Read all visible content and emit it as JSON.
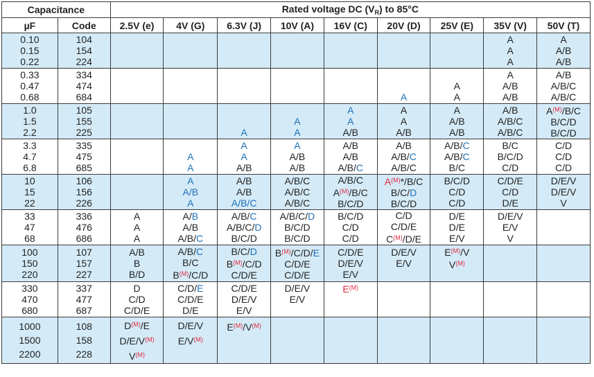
{
  "header": {
    "capacitance": "Capacitance",
    "rated_pre": "Rated voltage DC (V",
    "rated_sub": "R",
    "rated_post": ") to 85°C",
    "uf": "µF",
    "code": "Code",
    "voltages": [
      "2.5V (e)",
      "4V (G)",
      "6.3V (J)",
      "10V (A)",
      "16V (C)",
      "20V (D)",
      "25V (E)",
      "35V (V)",
      "50V (T)"
    ]
  },
  "colors": {
    "blue_row": "#d4ebf7",
    "blue_text": "#1f6fb5",
    "red_text": "#e0283c"
  },
  "rows": [
    {
      "band": "blue",
      "uf": [
        "0.10",
        "0.15",
        "0.22"
      ],
      "code": [
        "104",
        "154",
        "224"
      ],
      "cells": [
        [],
        [],
        [],
        [],
        [],
        [],
        [],
        [
          [
            [
              "A",
              "k"
            ]
          ],
          [
            [
              "A",
              "k"
            ]
          ],
          [
            [
              "A",
              "k"
            ]
          ]
        ],
        [
          [
            [
              "A",
              "k"
            ]
          ],
          [
            [
              "A/B",
              "k"
            ]
          ],
          [
            [
              "A/B",
              "k"
            ]
          ]
        ]
      ]
    },
    {
      "band": "white",
      "uf": [
        "0.33",
        "0.47",
        "0.68"
      ],
      "code": [
        "334",
        "474",
        "684"
      ],
      "cells": [
        [],
        [],
        [],
        [],
        [],
        [
          [],
          [],
          [
            [
              "A",
              "b"
            ]
          ]
        ],
        [
          [],
          [
            [
              "A",
              "k"
            ]
          ],
          [
            [
              "A",
              "k"
            ]
          ]
        ],
        [
          [
            [
              "A",
              "k"
            ]
          ],
          [
            [
              "A/B",
              "k"
            ]
          ],
          [
            [
              "A/B",
              "k"
            ]
          ]
        ],
        [
          [
            [
              "A/B",
              "k"
            ]
          ],
          [
            [
              "A/B/C",
              "k"
            ]
          ],
          [
            [
              "A/B/C",
              "k"
            ]
          ]
        ]
      ]
    },
    {
      "band": "blue",
      "uf": [
        "1.0",
        "1.5",
        "2.2"
      ],
      "code": [
        "105",
        "155",
        "225"
      ],
      "cells": [
        [],
        [],
        [
          [],
          [],
          [
            [
              "A",
              "b"
            ]
          ]
        ],
        [
          [],
          [
            [
              "A",
              "b"
            ]
          ],
          [
            [
              "A",
              "b"
            ]
          ]
        ],
        [
          [
            [
              "A",
              "b"
            ]
          ],
          [
            [
              "A",
              "b"
            ]
          ],
          [
            [
              "A/B",
              "k"
            ]
          ]
        ],
        [
          [
            [
              "A",
              "k"
            ]
          ],
          [
            [
              "A",
              "k"
            ]
          ],
          [
            [
              "A/B",
              "k"
            ]
          ]
        ],
        [
          [
            [
              "A",
              "k"
            ]
          ],
          [
            [
              "A/B",
              "k"
            ]
          ],
          [
            [
              "A/B",
              "k"
            ]
          ]
        ],
        [
          [
            [
              "A/B",
              "k"
            ]
          ],
          [
            [
              "A/B/C",
              "k"
            ]
          ],
          [
            [
              "A/B/C",
              "k"
            ]
          ]
        ],
        [
          [
            [
              "A",
              "k"
            ],
            [
              "(M)",
              "s"
            ],
            [
              "/B/C",
              "k"
            ]
          ],
          [
            [
              "B/C/D",
              "k"
            ]
          ],
          [
            [
              "B/C/D",
              "k"
            ]
          ]
        ]
      ]
    },
    {
      "band": "white",
      "uf": [
        "3.3",
        "4.7",
        "6.8"
      ],
      "code": [
        "335",
        "475",
        "685"
      ],
      "cells": [
        [],
        [
          [],
          [
            [
              "A",
              "b"
            ]
          ],
          [
            [
              "A",
              "b"
            ]
          ]
        ],
        [
          [
            [
              "A",
              "b"
            ]
          ],
          [
            [
              "A",
              "b"
            ]
          ],
          [
            [
              "A/B",
              "k"
            ]
          ]
        ],
        [
          [
            [
              "A",
              "b"
            ]
          ],
          [
            [
              "A/B",
              "k"
            ]
          ],
          [
            [
              "A/B",
              "k"
            ]
          ]
        ],
        [
          [
            [
              "A/B",
              "k"
            ]
          ],
          [
            [
              "A/B",
              "k"
            ]
          ],
          [
            [
              "A/B/",
              "k"
            ],
            [
              "C",
              "b"
            ]
          ]
        ],
        [
          [
            [
              "A/B",
              "k"
            ]
          ],
          [
            [
              "A/B/",
              "k"
            ],
            [
              "C",
              "b"
            ]
          ],
          [
            [
              "A/B/C",
              "k"
            ]
          ]
        ],
        [
          [
            [
              "A/B/",
              "k"
            ],
            [
              "C",
              "b"
            ]
          ],
          [
            [
              "A/B/",
              "k"
            ],
            [
              "C",
              "b"
            ]
          ],
          [
            [
              "B/C",
              "k"
            ]
          ]
        ],
        [
          [
            [
              "B/C",
              "k"
            ]
          ],
          [
            [
              "B/C/D",
              "k"
            ]
          ],
          [
            [
              "C/D",
              "k"
            ]
          ]
        ],
        [
          [
            [
              "C/D",
              "k"
            ]
          ],
          [
            [
              "C/D",
              "k"
            ]
          ],
          [
            [
              "C/D",
              "k"
            ]
          ]
        ]
      ]
    },
    {
      "band": "blue",
      "uf": [
        "10",
        "15",
        "22"
      ],
      "code": [
        "106",
        "156",
        "226"
      ],
      "cells": [
        [],
        [
          [
            [
              "A",
              "b"
            ]
          ],
          [
            [
              "A/B",
              "b"
            ]
          ],
          [
            [
              "A",
              "b"
            ]
          ]
        ],
        [
          [
            [
              "A/B",
              "k"
            ]
          ],
          [
            [
              "A/B",
              "k"
            ]
          ],
          [
            [
              "A/",
              "b"
            ],
            [
              "B/C",
              "b"
            ]
          ]
        ],
        [
          [
            [
              "A/B/C",
              "k"
            ]
          ],
          [
            [
              "A/B/C",
              "k"
            ]
          ],
          [
            [
              "A/B/C",
              "k"
            ]
          ]
        ],
        [
          [
            [
              "A/B/C",
              "k"
            ]
          ],
          [
            [
              "A",
              "k"
            ],
            [
              "(M)",
              "s"
            ],
            [
              "/B/C",
              "k"
            ]
          ],
          [
            [
              "B/C/D",
              "k"
            ]
          ]
        ],
        [
          [
            [
              "A",
              "r"
            ],
            [
              "(M)",
              "s"
            ],
            [
              "*/B/C",
              "k"
            ]
          ],
          [
            [
              "B/C/",
              "k"
            ],
            [
              "D",
              "b"
            ]
          ],
          [
            [
              "B/C/D",
              "k"
            ]
          ]
        ],
        [
          [
            [
              "B/C/D",
              "k"
            ]
          ],
          [
            [
              "C/D",
              "k"
            ]
          ],
          [
            [
              "C/D",
              "k"
            ]
          ]
        ],
        [
          [
            [
              "C/D/E",
              "k"
            ]
          ],
          [
            [
              "C/D",
              "k"
            ]
          ],
          [
            [
              "D/E",
              "k"
            ]
          ]
        ],
        [
          [
            [
              "D/E/V",
              "k"
            ]
          ],
          [
            [
              "D/E/V",
              "k"
            ]
          ],
          [
            [
              "V",
              "k"
            ]
          ]
        ]
      ]
    },
    {
      "band": "white",
      "uf": [
        "33",
        "47",
        "68"
      ],
      "code": [
        "336",
        "476",
        "686"
      ],
      "cells": [
        [
          [
            [
              "A",
              "k"
            ]
          ],
          [
            [
              "A",
              "k"
            ]
          ],
          [
            [
              "A",
              "k"
            ]
          ]
        ],
        [
          [
            [
              "A/",
              "k"
            ],
            [
              "B",
              "b"
            ]
          ],
          [
            [
              "A/B",
              "k"
            ]
          ],
          [
            [
              "A/B/",
              "k"
            ],
            [
              "C",
              "b"
            ]
          ]
        ],
        [
          [
            [
              "A/B/",
              "k"
            ],
            [
              "C",
              "b"
            ]
          ],
          [
            [
              "A/B/C/",
              "k"
            ],
            [
              "D",
              "b"
            ]
          ],
          [
            [
              "B/C/D",
              "k"
            ]
          ]
        ],
        [
          [
            [
              "A/B/C/",
              "k"
            ],
            [
              "D",
              "b"
            ]
          ],
          [
            [
              "B/C/D",
              "k"
            ]
          ],
          [
            [
              "B/C/D",
              "k"
            ]
          ]
        ],
        [
          [
            [
              "B/C/D",
              "k"
            ]
          ],
          [
            [
              "C/D",
              "k"
            ]
          ],
          [
            [
              "C/D",
              "k"
            ]
          ]
        ],
        [
          [
            [
              "C/D",
              "k"
            ]
          ],
          [
            [
              "C/D/E",
              "k"
            ]
          ],
          [
            [
              "C",
              "k"
            ],
            [
              "(M)",
              "s"
            ],
            [
              "/D/E",
              "k"
            ]
          ]
        ],
        [
          [
            [
              "D/E",
              "k"
            ]
          ],
          [
            [
              "D/E",
              "k"
            ]
          ],
          [
            [
              "E/V",
              "k"
            ]
          ]
        ],
        [
          [
            [
              "D/E/V",
              "k"
            ]
          ],
          [
            [
              "E/V",
              "k"
            ]
          ],
          [
            [
              "V",
              "k"
            ]
          ]
        ],
        []
      ]
    },
    {
      "band": "blue",
      "uf": [
        "100",
        "150",
        "220"
      ],
      "code": [
        "107",
        "157",
        "227"
      ],
      "cells": [
        [
          [
            [
              "A/B",
              "k"
            ]
          ],
          [
            [
              "B",
              "k"
            ]
          ],
          [
            [
              "B/D",
              "k"
            ]
          ]
        ],
        [
          [
            [
              "A/B/",
              "k"
            ],
            [
              "C",
              "b"
            ]
          ],
          [
            [
              "B/C",
              "k"
            ]
          ],
          [
            [
              "B",
              "k"
            ],
            [
              "(M)",
              "s"
            ],
            [
              "/C/D",
              "k"
            ]
          ]
        ],
        [
          [
            [
              "B/C/",
              "k"
            ],
            [
              "D",
              "b"
            ]
          ],
          [
            [
              "B",
              "k"
            ],
            [
              "(M)",
              "s"
            ],
            [
              "/C/D",
              "k"
            ]
          ],
          [
            [
              "C/D/E",
              "k"
            ]
          ]
        ],
        [
          [
            [
              "B",
              "k"
            ],
            [
              "(M)",
              "s"
            ],
            [
              "/C/D/",
              "k"
            ],
            [
              "E",
              "b"
            ]
          ],
          [
            [
              "C/D/E",
              "k"
            ]
          ],
          [
            [
              "C/D/E",
              "k"
            ]
          ]
        ],
        [
          [
            [
              "C/D/E",
              "k"
            ]
          ],
          [
            [
              "D/E/V",
              "k"
            ]
          ],
          [
            [
              "E/V",
              "k"
            ]
          ]
        ],
        [
          [
            [
              "D/E/V",
              "k"
            ]
          ],
          [
            [
              "E/V",
              "k"
            ]
          ],
          []
        ],
        [
          [
            [
              "E",
              "k"
            ],
            [
              "(M)",
              "s"
            ],
            [
              "/V",
              "k"
            ]
          ],
          [
            [
              "V",
              "k"
            ],
            [
              "(M)",
              "s"
            ]
          ],
          []
        ],
        [],
        []
      ]
    },
    {
      "band": "white",
      "uf": [
        "330",
        "470",
        "680"
      ],
      "code": [
        "337",
        "477",
        "687"
      ],
      "cells": [
        [
          [
            [
              "D",
              "k"
            ]
          ],
          [
            [
              "C/D",
              "k"
            ]
          ],
          [
            [
              "C/D/E",
              "k"
            ]
          ]
        ],
        [
          [
            [
              "C/D/",
              "k"
            ],
            [
              "E",
              "b"
            ]
          ],
          [
            [
              "C/D/E",
              "k"
            ]
          ],
          [
            [
              "D/E",
              "k"
            ]
          ]
        ],
        [
          [
            [
              "C/D/E",
              "k"
            ]
          ],
          [
            [
              "D/E/V",
              "k"
            ]
          ],
          [
            [
              "E/V",
              "k"
            ]
          ]
        ],
        [
          [
            [
              "D/E/V",
              "k"
            ]
          ],
          [
            [
              "E/V",
              "k"
            ]
          ],
          []
        ],
        [
          [
            [
              "E",
              "r"
            ],
            [
              "(M)",
              "s"
            ]
          ],
          [],
          []
        ],
        [],
        [],
        [],
        []
      ]
    },
    {
      "band": "blue",
      "last": true,
      "uf": [
        "1000",
        "1500",
        "2200"
      ],
      "code": [
        "108",
        "158",
        "228"
      ],
      "cells": [
        [
          [
            [
              "D",
              "k"
            ],
            [
              "(M)",
              "s"
            ],
            [
              "/E",
              "k"
            ]
          ],
          [
            [
              "D/E/V",
              "k"
            ],
            [
              "(M)",
              "s"
            ]
          ],
          [
            [
              "V",
              "k"
            ],
            [
              "(M)",
              "s"
            ]
          ]
        ],
        [
          [
            [
              "D/E/V",
              "k"
            ]
          ],
          [
            [
              "E/V",
              "k"
            ],
            [
              "(M)",
              "s"
            ]
          ],
          []
        ],
        [
          [
            [
              "E",
              "k"
            ],
            [
              "(M)",
              "s"
            ],
            [
              "/V",
              "k"
            ],
            [
              "(M)",
              "s"
            ]
          ],
          [],
          []
        ],
        [],
        [],
        [],
        [],
        [],
        []
      ]
    }
  ]
}
